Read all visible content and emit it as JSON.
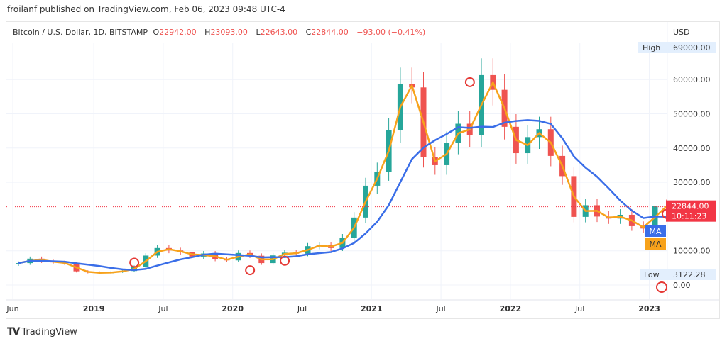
{
  "header": {
    "published": "froilanf published on TradingView.com, Feb 06, 2023 09:48 UTC-4"
  },
  "legend": {
    "symbol": "Bitcoin / U.S. Dollar, 1D, BITSTAMP",
    "o_label": "O",
    "o": "22942.00",
    "h_label": "H",
    "h": "23093.00",
    "l_label": "L",
    "l": "22643.00",
    "c_label": "C",
    "c": "22844.00",
    "change": "−93.00 (−0.41%)"
  },
  "footer": {
    "brand": "TradingView",
    "logo_text": "TV"
  },
  "colors": {
    "up": "#26a69a",
    "down": "#ef5350",
    "ma_fast": "#f7a21b",
    "ma_slow": "#3a6ee8",
    "marker": "#e53935",
    "last_price": "#f23645"
  },
  "chart_data": {
    "type": "candlestick",
    "currency": "USD",
    "ylim": [
      0,
      72000
    ],
    "y_ticks": [
      "0.00",
      "10000.00",
      "30000.00",
      "40000.00",
      "50000.00",
      "60000.00"
    ],
    "x_ticks": [
      {
        "label": "Jun",
        "month": 0,
        "bold": false
      },
      {
        "label": "2019",
        "month": 7,
        "bold": true
      },
      {
        "label": "Jul",
        "month": 13,
        "bold": false
      },
      {
        "label": "2020",
        "month": 19,
        "bold": true
      },
      {
        "label": "Jul",
        "month": 25,
        "bold": false
      },
      {
        "label": "2021",
        "month": 31,
        "bold": true
      },
      {
        "label": "Jul",
        "month": 37,
        "bold": false
      },
      {
        "label": "2022",
        "month": 43,
        "bold": true
      },
      {
        "label": "Jul",
        "month": 49,
        "bold": false
      },
      {
        "label": "2023",
        "month": 55,
        "bold": true
      }
    ],
    "start": "2018-06",
    "monthly_close": [
      6400,
      7700,
      7000,
      6600,
      6300,
      4000,
      3700,
      3450,
      3850,
      4100,
      5300,
      8600,
      10800,
      10100,
      9600,
      8300,
      9200,
      7550,
      7200,
      9350,
      8550,
      6400,
      8650,
      9450,
      9150,
      11350,
      11650,
      10800,
      13800,
      19700,
      29000,
      33100,
      45200,
      58800,
      57700,
      37300,
      35000,
      41500,
      47100,
      43800,
      61300,
      57000,
      46200,
      38500,
      43200,
      45500,
      37700,
      31800,
      19900,
      23300,
      20000,
      19400,
      20500,
      17200,
      16500,
      23100,
      22844
    ],
    "high": {
      "label": "High",
      "value": "69000.00"
    },
    "low": {
      "label": "Low",
      "value": "3122.28"
    },
    "last": {
      "price": "22844.00",
      "countdown": "10:11:23"
    },
    "ma_labels": [
      "MA",
      "MA"
    ],
    "cross_markers": [
      10.5,
      20.5,
      23.5,
      39.5,
      56.5
    ]
  }
}
